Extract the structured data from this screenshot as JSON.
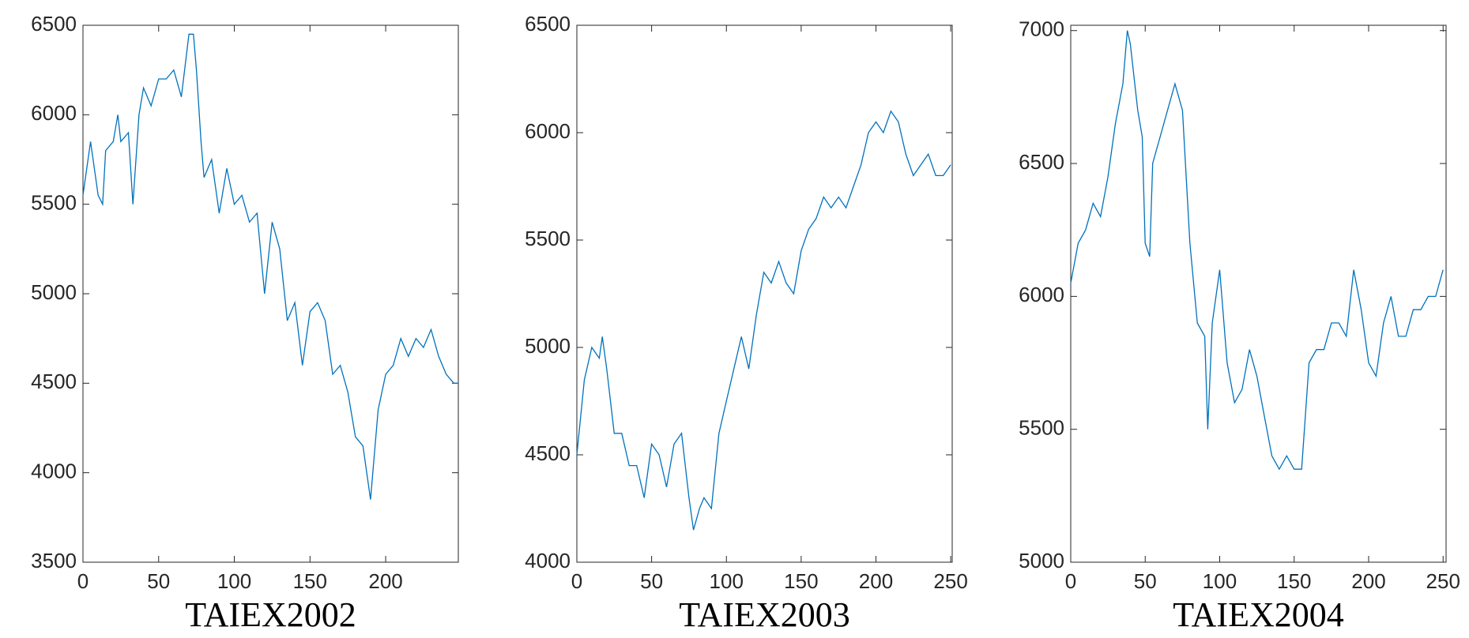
{
  "chart_data": [
    {
      "type": "line",
      "xlabel": "TAIEX2002",
      "color": "#0072bd",
      "x": [
        0,
        5,
        10,
        13,
        15,
        20,
        23,
        25,
        30,
        33,
        37,
        40,
        45,
        50,
        55,
        60,
        65,
        70,
        73,
        75,
        78,
        80,
        85,
        90,
        95,
        100,
        105,
        110,
        115,
        120,
        125,
        130,
        135,
        140,
        145,
        150,
        155,
        160,
        165,
        170,
        175,
        180,
        185,
        190,
        195,
        200,
        205,
        210,
        215,
        220,
        225,
        230,
        235,
        240,
        245,
        248
      ],
      "values": [
        5550,
        5850,
        5550,
        5500,
        5800,
        5850,
        6000,
        5850,
        5900,
        5500,
        6000,
        6150,
        6050,
        6200,
        6200,
        6250,
        6100,
        6450,
        6450,
        6250,
        5850,
        5650,
        5750,
        5450,
        5700,
        5500,
        5550,
        5400,
        5450,
        5000,
        5400,
        5250,
        4850,
        4950,
        4600,
        4900,
        4950,
        4850,
        4550,
        4600,
        4450,
        4200,
        4150,
        3850,
        4350,
        4550,
        4600,
        4750,
        4650,
        4750,
        4700,
        4800,
        4650,
        4550,
        4500,
        4500
      ],
      "xlim": [
        0,
        248
      ],
      "ylim": [
        3500,
        6500
      ],
      "xticks": [
        0,
        50,
        100,
        150,
        200
      ],
      "yticks": [
        3500,
        4000,
        4500,
        5000,
        5500,
        6000,
        6500
      ]
    },
    {
      "type": "line",
      "xlabel": "TAIEX2003",
      "color": "#0072bd",
      "x": [
        0,
        5,
        10,
        15,
        17,
        20,
        25,
        30,
        35,
        40,
        45,
        50,
        55,
        60,
        65,
        70,
        75,
        78,
        82,
        85,
        90,
        95,
        100,
        105,
        110,
        115,
        120,
        125,
        130,
        135,
        140,
        145,
        150,
        155,
        160,
        165,
        170,
        175,
        180,
        185,
        190,
        195,
        200,
        205,
        210,
        215,
        220,
        225,
        230,
        235,
        240,
        245,
        250
      ],
      "values": [
        4500,
        4850,
        5000,
        4950,
        5050,
        4900,
        4600,
        4600,
        4450,
        4450,
        4300,
        4550,
        4500,
        4350,
        4550,
        4600,
        4300,
        4150,
        4250,
        4300,
        4250,
        4600,
        4750,
        4900,
        5050,
        4900,
        5150,
        5350,
        5300,
        5400,
        5300,
        5250,
        5450,
        5550,
        5600,
        5700,
        5650,
        5700,
        5650,
        5750,
        5850,
        6000,
        6050,
        6000,
        6100,
        6050,
        5900,
        5800,
        5850,
        5900,
        5800,
        5800,
        5850
      ],
      "xlim": [
        0,
        251
      ],
      "ylim": [
        4000,
        6500
      ],
      "xticks": [
        0,
        50,
        100,
        150,
        200,
        250
      ],
      "yticks": [
        4000,
        4500,
        5000,
        5500,
        6000,
        6500
      ]
    },
    {
      "type": "line",
      "xlabel": "TAIEX2004",
      "color": "#0072bd",
      "x": [
        0,
        5,
        10,
        15,
        20,
        25,
        30,
        35,
        38,
        40,
        45,
        48,
        50,
        53,
        55,
        60,
        65,
        70,
        75,
        80,
        85,
        90,
        92,
        95,
        100,
        105,
        110,
        115,
        120,
        125,
        130,
        135,
        140,
        145,
        150,
        155,
        160,
        165,
        170,
        175,
        180,
        185,
        190,
        195,
        200,
        205,
        210,
        215,
        220,
        225,
        230,
        235,
        240,
        245,
        250
      ],
      "values": [
        6050,
        6200,
        6250,
        6350,
        6300,
        6450,
        6650,
        6800,
        7000,
        6950,
        6700,
        6600,
        6200,
        6150,
        6500,
        6600,
        6700,
        6800,
        6700,
        6200,
        5900,
        5850,
        5500,
        5900,
        6100,
        5750,
        5600,
        5650,
        5800,
        5700,
        5550,
        5400,
        5350,
        5400,
        5350,
        5350,
        5750,
        5800,
        5800,
        5900,
        5900,
        5850,
        6100,
        5950,
        5750,
        5700,
        5900,
        6000,
        5850,
        5850,
        5950,
        5950,
        6000,
        6000,
        6100
      ],
      "xlim": [
        0,
        252
      ],
      "ylim": [
        5000,
        7020
      ],
      "xticks": [
        0,
        50,
        100,
        150,
        200,
        250
      ],
      "yticks": [
        5000,
        5500,
        6000,
        6500,
        7000
      ]
    }
  ]
}
